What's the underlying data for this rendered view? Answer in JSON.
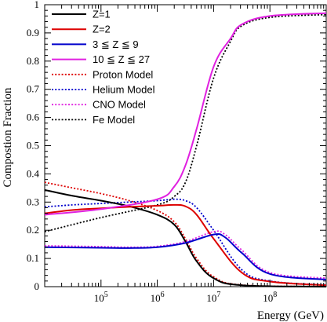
{
  "chart_data": {
    "type": "line",
    "xlabel": "Energy (GeV)",
    "ylabel": "Compostion Fraction",
    "xscale": "log",
    "xlim": [
      10000,
      1000000000
    ],
    "ylim": [
      0,
      1
    ],
    "x_ticks": [
      {
        "value": 100000,
        "base": "10",
        "exp": "5"
      },
      {
        "value": 1000000,
        "base": "10",
        "exp": "6"
      },
      {
        "value": 10000000,
        "base": "10",
        "exp": "7"
      },
      {
        "value": 100000000,
        "base": "10",
        "exp": "8"
      }
    ],
    "y_ticks": [
      0,
      0.1,
      0.2,
      0.3,
      0.4,
      0.5,
      0.6,
      0.7,
      0.8,
      0.9,
      1
    ],
    "y_tick_labels": [
      "0",
      "0.1",
      "0.2",
      "0.3",
      "0.4",
      "0.5",
      "0.6",
      "0.7",
      "0.8",
      "0.9",
      "1"
    ],
    "grid": false,
    "legend_position": "top-left",
    "series": [
      {
        "name": "Z=1",
        "color": "#000000",
        "style": "solid",
        "points": [
          [
            10000,
            0.343
          ],
          [
            31600,
            0.322
          ],
          [
            100000,
            0.305
          ],
          [
            316000,
            0.285
          ],
          [
            1000000,
            0.255
          ],
          [
            2000000,
            0.22
          ],
          [
            3160000,
            0.16
          ],
          [
            5000000,
            0.09
          ],
          [
            10000000,
            0.03
          ],
          [
            31600000,
            0.005
          ],
          [
            1000000000,
            0.0
          ]
        ]
      },
      {
        "name": "Z=2",
        "color": "#dd0000",
        "style": "solid",
        "points": [
          [
            10000,
            0.26
          ],
          [
            31600,
            0.272
          ],
          [
            100000,
            0.278
          ],
          [
            316000,
            0.283
          ],
          [
            1000000,
            0.287
          ],
          [
            2000000,
            0.29
          ],
          [
            3160000,
            0.285
          ],
          [
            5000000,
            0.255
          ],
          [
            10000000,
            0.17
          ],
          [
            31600000,
            0.05
          ],
          [
            100000000,
            0.018
          ],
          [
            1000000000,
            0.005
          ]
        ]
      },
      {
        "name": "3 ≦ Z ≦ 9",
        "color": "#0000cc",
        "style": "solid",
        "points": [
          [
            10000,
            0.14
          ],
          [
            100000,
            0.138
          ],
          [
            316000,
            0.137
          ],
          [
            1000000,
            0.14
          ],
          [
            3160000,
            0.155
          ],
          [
            10000000,
            0.185
          ],
          [
            16000000,
            0.175
          ],
          [
            31600000,
            0.12
          ],
          [
            100000000,
            0.045
          ],
          [
            1000000000,
            0.025
          ]
        ]
      },
      {
        "name": "10 ≦ Z ≦ 27",
        "color": "#e020e0",
        "style": "solid",
        "points": [
          [
            10000,
            0.255
          ],
          [
            100000,
            0.275
          ],
          [
            1000000,
            0.31
          ],
          [
            2000000,
            0.355
          ],
          [
            3160000,
            0.43
          ],
          [
            5000000,
            0.56
          ],
          [
            10000000,
            0.78
          ],
          [
            20000000,
            0.88
          ],
          [
            31600000,
            0.93
          ],
          [
            100000000,
            0.96
          ],
          [
            1000000000,
            0.97
          ]
        ]
      },
      {
        "name": "Proton Model",
        "color": "#dd0000",
        "style": "dotted",
        "points": [
          [
            10000,
            0.37
          ],
          [
            31600,
            0.35
          ],
          [
            100000,
            0.33
          ],
          [
            316000,
            0.305
          ],
          [
            1000000,
            0.27
          ],
          [
            2000000,
            0.23
          ],
          [
            3160000,
            0.17
          ],
          [
            5000000,
            0.1
          ],
          [
            10000000,
            0.035
          ],
          [
            31600000,
            0.006
          ],
          [
            1000000000,
            0.0
          ]
        ]
      },
      {
        "name": "Helium Model",
        "color": "#0000cc",
        "style": "dotted",
        "points": [
          [
            10000,
            0.283
          ],
          [
            31600,
            0.29
          ],
          [
            100000,
            0.295
          ],
          [
            316000,
            0.3
          ],
          [
            1000000,
            0.305
          ],
          [
            2000000,
            0.31
          ],
          [
            3160000,
            0.305
          ],
          [
            5000000,
            0.28
          ],
          [
            10000000,
            0.2
          ],
          [
            31600000,
            0.06
          ],
          [
            100000000,
            0.02
          ],
          [
            1000000000,
            0.006
          ]
        ]
      },
      {
        "name": "CNO Model",
        "color": "#e020e0",
        "style": "dotted",
        "points": [
          [
            10000,
            0.145
          ],
          [
            100000,
            0.142
          ],
          [
            316000,
            0.14
          ],
          [
            1000000,
            0.143
          ],
          [
            3160000,
            0.16
          ],
          [
            10000000,
            0.195
          ],
          [
            16000000,
            0.185
          ],
          [
            31600000,
            0.13
          ],
          [
            100000000,
            0.05
          ],
          [
            1000000000,
            0.03
          ]
        ]
      },
      {
        "name": "Fe Model",
        "color": "#000000",
        "style": "dotted",
        "points": [
          [
            10000,
            0.195
          ],
          [
            100000,
            0.245
          ],
          [
            1000000,
            0.29
          ],
          [
            2000000,
            0.32
          ],
          [
            3160000,
            0.37
          ],
          [
            5000000,
            0.5
          ],
          [
            10000000,
            0.74
          ],
          [
            20000000,
            0.87
          ],
          [
            31600000,
            0.925
          ],
          [
            100000000,
            0.955
          ],
          [
            1000000000,
            0.965
          ]
        ]
      }
    ]
  }
}
